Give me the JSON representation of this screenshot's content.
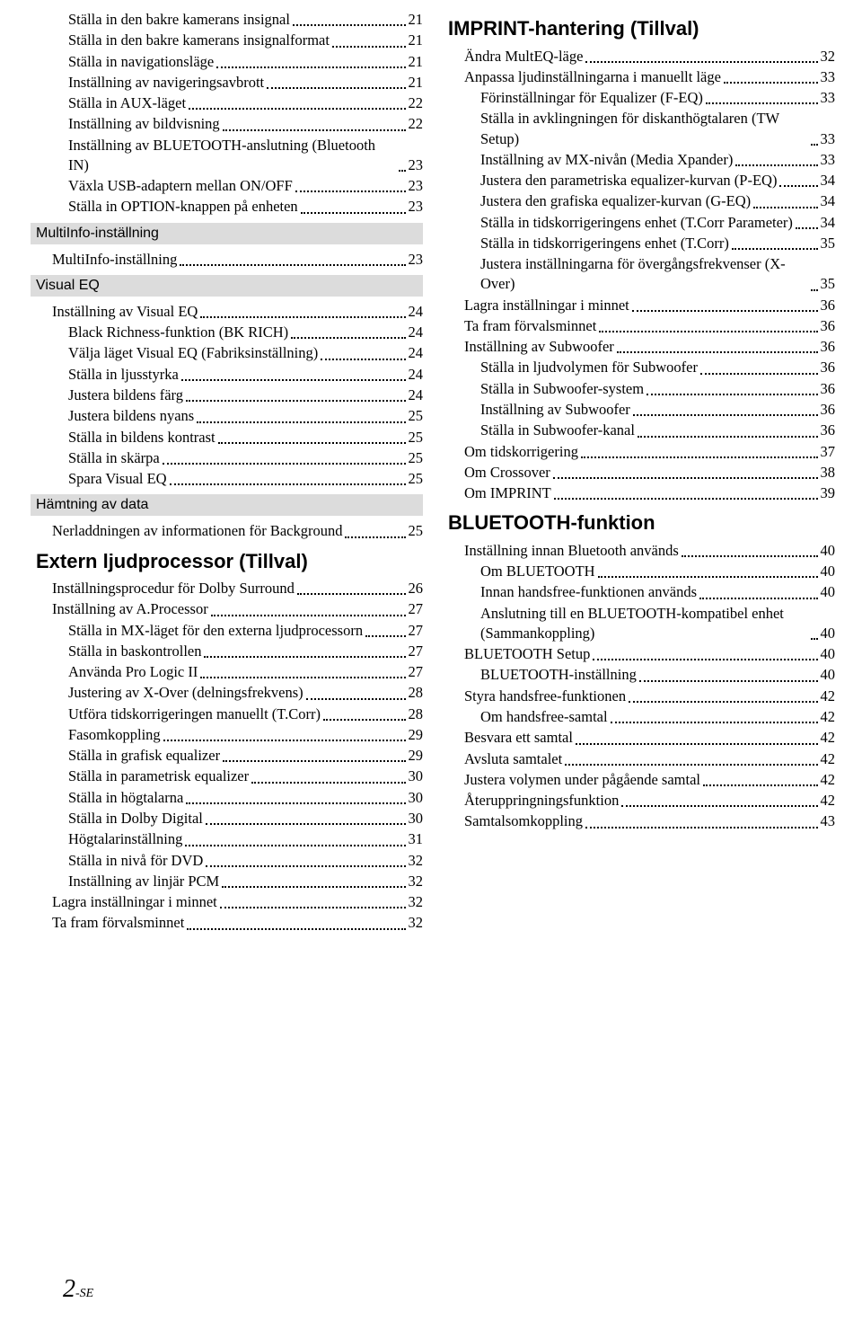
{
  "pageNumber": {
    "num": "2",
    "suffix": "-SE"
  },
  "left": [
    {
      "type": "entry",
      "indent": 1,
      "label": "Ställa in den bakre kamerans insignal",
      "page": "21"
    },
    {
      "type": "entry",
      "indent": 1,
      "label": "Ställa in den bakre kamerans insignalformat",
      "page": "21"
    },
    {
      "type": "entry",
      "indent": 1,
      "label": "Ställa in navigationsläge",
      "page": "21"
    },
    {
      "type": "entry",
      "indent": 1,
      "label": "Inställning av navigeringsavbrott",
      "page": "21"
    },
    {
      "type": "entry",
      "indent": 1,
      "label": "Ställa in AUX-läget",
      "page": "22"
    },
    {
      "type": "entry",
      "indent": 1,
      "label": "Inställning av bildvisning",
      "page": "22"
    },
    {
      "type": "entry",
      "indent": 1,
      "label": "Inställning av BLUETOOTH-anslutning (Bluetooth IN)",
      "page": "23"
    },
    {
      "type": "entry",
      "indent": 1,
      "label": "Växla USB-adaptern mellan ON/OFF",
      "page": "23"
    },
    {
      "type": "entry",
      "indent": 1,
      "label": "Ställa in OPTION-knappen på enheten",
      "page": "23"
    },
    {
      "type": "band",
      "label": "MultiInfo-inställning"
    },
    {
      "type": "entry",
      "indent": 0,
      "label": "MultiInfo-inställning",
      "page": "23"
    },
    {
      "type": "band",
      "label": "Visual EQ"
    },
    {
      "type": "entry",
      "indent": 0,
      "label": "Inställning av Visual EQ",
      "page": "24"
    },
    {
      "type": "entry",
      "indent": 1,
      "label": "Black Richness-funktion (BK RICH)",
      "page": "24"
    },
    {
      "type": "entry",
      "indent": 1,
      "label": "Välja läget Visual EQ (Fabriksinställning)",
      "page": "24"
    },
    {
      "type": "entry",
      "indent": 1,
      "label": "Ställa in ljusstyrka",
      "page": "24"
    },
    {
      "type": "entry",
      "indent": 1,
      "label": "Justera bildens färg",
      "page": "24"
    },
    {
      "type": "entry",
      "indent": 1,
      "label": "Justera bildens nyans",
      "page": "25"
    },
    {
      "type": "entry",
      "indent": 1,
      "label": "Ställa in bildens kontrast",
      "page": "25"
    },
    {
      "type": "entry",
      "indent": 1,
      "label": "Ställa in skärpa",
      "page": "25"
    },
    {
      "type": "entry",
      "indent": 1,
      "label": "Spara Visual EQ",
      "page": "25"
    },
    {
      "type": "band",
      "label": "Hämtning av data"
    },
    {
      "type": "entry",
      "indent": 0,
      "label": "Nerladdningen av informationen för Background",
      "page": "25"
    },
    {
      "type": "major",
      "label": "Extern ljudprocessor (Tillval)"
    },
    {
      "type": "entry",
      "indent": 0,
      "label": "Inställningsprocedur för Dolby Surround",
      "page": "26"
    },
    {
      "type": "entry",
      "indent": 0,
      "label": "Inställning av A.Processor",
      "page": "27"
    },
    {
      "type": "entry",
      "indent": 1,
      "label": "Ställa in MX-läget för den externa ljudprocessorn",
      "page": "27"
    },
    {
      "type": "entry",
      "indent": 1,
      "label": "Ställa in baskontrollen",
      "page": "27"
    },
    {
      "type": "entry",
      "indent": 1,
      "label": "Använda Pro Logic II",
      "page": "27"
    },
    {
      "type": "entry",
      "indent": 1,
      "label": "Justering av X-Over (delningsfrekvens)",
      "page": "28"
    },
    {
      "type": "entry",
      "indent": 1,
      "label": "Utföra tidskorrigeringen manuellt (T.Corr)",
      "page": "28"
    },
    {
      "type": "entry",
      "indent": 1,
      "label": "Fasomkoppling",
      "page": "29"
    },
    {
      "type": "entry",
      "indent": 1,
      "label": "Ställa in grafisk equalizer",
      "page": "29"
    },
    {
      "type": "entry",
      "indent": 1,
      "label": "Ställa in parametrisk equalizer",
      "page": "30"
    },
    {
      "type": "entry",
      "indent": 1,
      "label": "Ställa in högtalarna",
      "page": "30"
    },
    {
      "type": "entry",
      "indent": 1,
      "label": "Ställa in Dolby Digital",
      "page": "30"
    },
    {
      "type": "entry",
      "indent": 1,
      "label": "Högtalarinställning",
      "page": "31"
    },
    {
      "type": "entry",
      "indent": 1,
      "label": "Ställa in nivå för DVD",
      "page": "32"
    },
    {
      "type": "entry",
      "indent": 1,
      "label": "Inställning av linjär PCM",
      "page": "32"
    },
    {
      "type": "entry",
      "indent": 0,
      "label": "Lagra inställningar i minnet",
      "page": "32"
    },
    {
      "type": "entry",
      "indent": 0,
      "label": "Ta fram förvalsminnet",
      "page": "32"
    }
  ],
  "right": [
    {
      "type": "major",
      "label": "IMPRINT-hantering (Tillval)"
    },
    {
      "type": "entry",
      "indent": 0,
      "label": "Ändra MultEQ-läge",
      "page": "32"
    },
    {
      "type": "entry",
      "indent": 0,
      "label": "Anpassa ljudinställningarna i manuellt läge",
      "page": "33"
    },
    {
      "type": "entry",
      "indent": 1,
      "label": "Förinställningar för Equalizer (F-EQ)",
      "page": "33"
    },
    {
      "type": "entry",
      "indent": 1,
      "label": "Ställa in avklingningen för diskanthögtalaren (TW Setup)",
      "page": "33"
    },
    {
      "type": "entry",
      "indent": 1,
      "label": "Inställning av MX-nivån (Media Xpander)",
      "page": "33"
    },
    {
      "type": "entry",
      "indent": 1,
      "label": "Justera den parametriska equalizer-kurvan (P-EQ)",
      "page": "34"
    },
    {
      "type": "entry",
      "indent": 1,
      "label": "Justera den grafiska equalizer-kurvan (G-EQ)",
      "page": "34"
    },
    {
      "type": "entry",
      "indent": 1,
      "label": "Ställa in tidskorrigeringens enhet (T.Corr Parameter)",
      "page": "34"
    },
    {
      "type": "entry",
      "indent": 1,
      "label": "Ställa in tidskorrigeringens enhet (T.Corr)",
      "page": "35"
    },
    {
      "type": "entry",
      "indent": 1,
      "label": "Justera inställningarna för övergångsfrekvenser (X-Over)",
      "page": "35"
    },
    {
      "type": "entry",
      "indent": 0,
      "label": "Lagra inställningar i minnet",
      "page": "36"
    },
    {
      "type": "entry",
      "indent": 0,
      "label": "Ta fram förvalsminnet",
      "page": "36"
    },
    {
      "type": "entry",
      "indent": 0,
      "label": "Inställning av Subwoofer",
      "page": "36"
    },
    {
      "type": "entry",
      "indent": 1,
      "label": "Ställa in ljudvolymen för Subwoofer",
      "page": "36"
    },
    {
      "type": "entry",
      "indent": 1,
      "label": "Ställa in Subwoofer-system",
      "page": "36"
    },
    {
      "type": "entry",
      "indent": 1,
      "label": "Inställning av Subwoofer",
      "page": "36"
    },
    {
      "type": "entry",
      "indent": 1,
      "label": "Ställa in Subwoofer-kanal",
      "page": "36"
    },
    {
      "type": "entry",
      "indent": 0,
      "label": "Om tidskorrigering",
      "page": "37"
    },
    {
      "type": "entry",
      "indent": 0,
      "label": "Om Crossover",
      "page": "38"
    },
    {
      "type": "entry",
      "indent": 0,
      "label": "Om IMPRINT",
      "page": "39"
    },
    {
      "type": "major",
      "label": "BLUETOOTH-funktion"
    },
    {
      "type": "entry",
      "indent": 0,
      "label": "Inställning innan Bluetooth används",
      "page": "40"
    },
    {
      "type": "entry",
      "indent": 1,
      "label": "Om BLUETOOTH",
      "page": "40"
    },
    {
      "type": "entry",
      "indent": 1,
      "label": "Innan handsfree-funktionen används",
      "page": "40"
    },
    {
      "type": "entry",
      "indent": 1,
      "label": "Anslutning till en BLUETOOTH-kompatibel enhet (Sammankoppling)",
      "page": "40"
    },
    {
      "type": "entry",
      "indent": 0,
      "label": "BLUETOOTH Setup",
      "page": "40"
    },
    {
      "type": "entry",
      "indent": 1,
      "label": "BLUETOOTH-inställning",
      "page": "40"
    },
    {
      "type": "entry",
      "indent": 0,
      "label": "Styra handsfree-funktionen",
      "page": "42"
    },
    {
      "type": "entry",
      "indent": 1,
      "label": "Om handsfree-samtal",
      "page": "42"
    },
    {
      "type": "entry",
      "indent": 0,
      "label": "Besvara ett samtal",
      "page": "42"
    },
    {
      "type": "entry",
      "indent": 0,
      "label": "Avsluta samtalet",
      "page": "42"
    },
    {
      "type": "entry",
      "indent": 0,
      "label": "Justera volymen under pågående samtal",
      "page": "42"
    },
    {
      "type": "entry",
      "indent": 0,
      "label": "Återuppringningsfunktion",
      "page": "42"
    },
    {
      "type": "entry",
      "indent": 0,
      "label": "Samtalsomkoppling",
      "page": "43"
    }
  ]
}
